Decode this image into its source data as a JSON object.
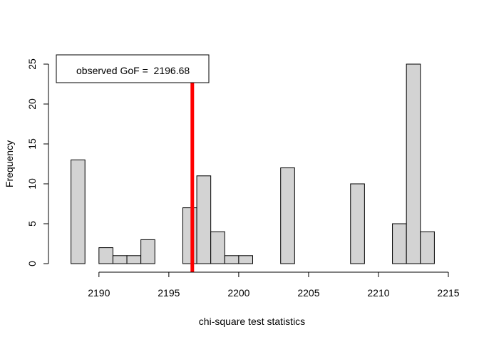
{
  "chart_data": {
    "type": "bar",
    "title": "",
    "xlabel": "chi-square test statistics",
    "ylabel": "Frequency",
    "xlim": [
      2187.0,
      2215.0
    ],
    "ylim": [
      0,
      25
    ],
    "x_ticks": [
      2190,
      2195,
      2200,
      2205,
      2210,
      2215
    ],
    "y_ticks": [
      0,
      5,
      10,
      15,
      20,
      25
    ],
    "bin_width": 1,
    "bins": [
      {
        "start": 2188,
        "end": 2189,
        "count": 13
      },
      {
        "start": 2190,
        "end": 2191,
        "count": 2
      },
      {
        "start": 2191,
        "end": 2192,
        "count": 1
      },
      {
        "start": 2192,
        "end": 2193,
        "count": 1
      },
      {
        "start": 2193,
        "end": 2194,
        "count": 3
      },
      {
        "start": 2196,
        "end": 2197,
        "count": 7
      },
      {
        "start": 2197,
        "end": 2198,
        "count": 11
      },
      {
        "start": 2198,
        "end": 2199,
        "count": 4
      },
      {
        "start": 2199,
        "end": 2200,
        "count": 1
      },
      {
        "start": 2200,
        "end": 2201,
        "count": 1
      },
      {
        "start": 2203,
        "end": 2204,
        "count": 12
      },
      {
        "start": 2208,
        "end": 2209,
        "count": 10
      },
      {
        "start": 2211,
        "end": 2212,
        "count": 5
      },
      {
        "start": 2212,
        "end": 2213,
        "count": 25
      },
      {
        "start": 2213,
        "end": 2214,
        "count": 4
      }
    ],
    "reference_line": {
      "x": 2196.68,
      "color": "#ff0000"
    },
    "legend": {
      "text": "observed GoF =  2196.68",
      "position": "top-left"
    },
    "bar_fill": "#d3d3d3",
    "bar_stroke": "#000000",
    "grid": false
  }
}
